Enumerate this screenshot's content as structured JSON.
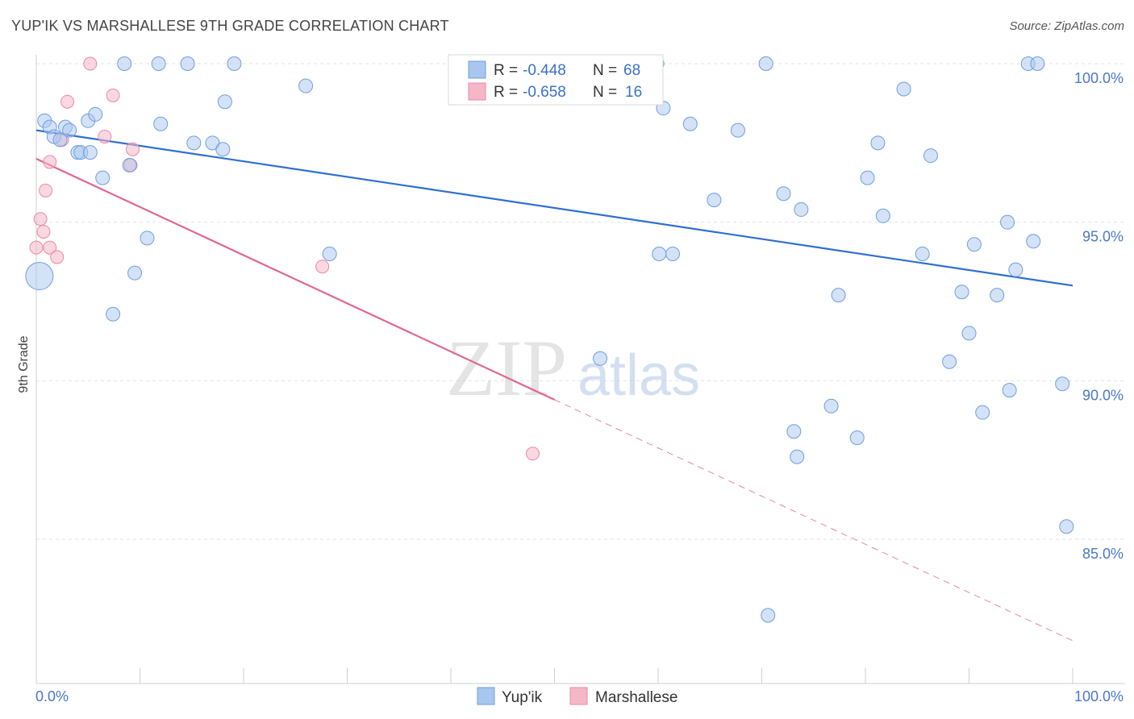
{
  "title": "YUP'IK VS MARSHALLESE 9TH GRADE CORRELATION CHART",
  "source": "Source: ZipAtlas.com",
  "watermark": {
    "zip": "ZIP",
    "atlas": "atlas"
  },
  "legend_box": {
    "rows": [
      {
        "r_label": "R = ",
        "r_value": "-0.448",
        "n_label": "N = ",
        "n_value": "68",
        "color": "#a9c6ef"
      },
      {
        "r_label": "R = ",
        "r_value": "-0.658",
        "n_label": "N = ",
        "n_value": "16",
        "color": "#f5b7c8"
      }
    ]
  },
  "colors": {
    "yupik_fill": "#a9c6ef",
    "yupik_stroke": "#6e9fdc",
    "yupik_line": "#2f6fcf",
    "marsh_fill": "#f5b7c8",
    "marsh_stroke": "#e88aa6",
    "marsh_line": "#e0678f",
    "grid": "#e3e3e3",
    "tick_label": "#4a78c8"
  },
  "chart_data": {
    "type": "scatter",
    "title": "YUP'IK VS MARSHALLESE 9TH GRADE CORRELATION CHART",
    "xlabel": "",
    "ylabel": "9th Grade",
    "xlim": [
      0,
      100
    ],
    "ylim": [
      80.5,
      100.5
    ],
    "x_tick_labels": [
      {
        "value": 0,
        "label": "0.0%"
      },
      {
        "value": 100,
        "label": "100.0%"
      }
    ],
    "y_tick_labels": [
      {
        "value": 100,
        "label": "100.0%"
      },
      {
        "value": 95,
        "label": "95.0%"
      },
      {
        "value": 90,
        "label": "90.0%"
      },
      {
        "value": 85,
        "label": "85.0%"
      }
    ],
    "grid": true,
    "legend": {
      "placement": "bottom",
      "items": [
        "Yup'ik",
        "Marshallese"
      ]
    },
    "series": [
      {
        "name": "Yup'ik",
        "points": [
          [
            0.3,
            93.3
          ],
          [
            0.8,
            98.2
          ],
          [
            1.3,
            98.0
          ],
          [
            1.7,
            97.7
          ],
          [
            2.3,
            97.6
          ],
          [
            2.8,
            98.0
          ],
          [
            3.2,
            97.9
          ],
          [
            4.0,
            97.2
          ],
          [
            4.3,
            97.2
          ],
          [
            5.2,
            97.2
          ],
          [
            5.0,
            98.2
          ],
          [
            5.7,
            98.4
          ],
          [
            6.4,
            96.4
          ],
          [
            7.4,
            92.1
          ],
          [
            8.5,
            100.0
          ],
          [
            9.0,
            96.8
          ],
          [
            9.5,
            93.4
          ],
          [
            10.7,
            94.5
          ],
          [
            11.8,
            100.0
          ],
          [
            12.0,
            98.1
          ],
          [
            14.6,
            100.0
          ],
          [
            15.2,
            97.5
          ],
          [
            17.0,
            97.5
          ],
          [
            18.0,
            97.3
          ],
          [
            18.2,
            98.8
          ],
          [
            19.1,
            100.0
          ],
          [
            26.0,
            99.3
          ],
          [
            28.3,
            94.0
          ],
          [
            41.3,
            100.0
          ],
          [
            49.8,
            100.0
          ],
          [
            54.4,
            90.7
          ],
          [
            58.1,
            99.6
          ],
          [
            59.9,
            100.0
          ],
          [
            60.1,
            94.0
          ],
          [
            60.5,
            98.6
          ],
          [
            61.4,
            94.0
          ],
          [
            63.1,
            98.1
          ],
          [
            65.4,
            95.7
          ],
          [
            67.7,
            97.9
          ],
          [
            70.4,
            100.0
          ],
          [
            70.6,
            82.6
          ],
          [
            72.1,
            95.9
          ],
          [
            73.1,
            88.4
          ],
          [
            73.4,
            87.6
          ],
          [
            73.8,
            95.4
          ],
          [
            76.7,
            89.2
          ],
          [
            77.4,
            92.7
          ],
          [
            79.2,
            88.2
          ],
          [
            80.2,
            96.4
          ],
          [
            81.2,
            97.5
          ],
          [
            81.7,
            95.2
          ],
          [
            83.7,
            99.2
          ],
          [
            85.5,
            94.0
          ],
          [
            86.3,
            97.1
          ],
          [
            88.1,
            90.6
          ],
          [
            89.3,
            92.8
          ],
          [
            90.0,
            91.5
          ],
          [
            90.5,
            94.3
          ],
          [
            91.3,
            89.0
          ],
          [
            92.7,
            92.7
          ],
          [
            93.7,
            95.0
          ],
          [
            93.9,
            89.7
          ],
          [
            94.5,
            93.5
          ],
          [
            95.7,
            100.0
          ],
          [
            96.2,
            94.4
          ],
          [
            96.6,
            100.0
          ],
          [
            99.0,
            89.9
          ],
          [
            99.4,
            85.4
          ]
        ],
        "trend": {
          "x": [
            0,
            100
          ],
          "y": [
            97.9,
            93.0
          ]
        }
      },
      {
        "name": "Marshallese",
        "points": [
          [
            0.0,
            94.2
          ],
          [
            0.4,
            95.1
          ],
          [
            0.7,
            94.7
          ],
          [
            0.9,
            96.0
          ],
          [
            1.3,
            96.9
          ],
          [
            1.3,
            94.2
          ],
          [
            2.0,
            93.9
          ],
          [
            2.5,
            97.6
          ],
          [
            3.0,
            98.8
          ],
          [
            5.2,
            100.0
          ],
          [
            6.6,
            97.7
          ],
          [
            7.4,
            99.0
          ],
          [
            9.1,
            96.8
          ],
          [
            9.3,
            97.3
          ],
          [
            27.6,
            93.6
          ],
          [
            47.9,
            87.7
          ]
        ],
        "trend": {
          "x": [
            0,
            50
          ],
          "y": [
            97.0,
            89.4
          ]
        },
        "trend_extension": {
          "x": [
            50,
            100
          ],
          "y": [
            89.4,
            81.8
          ]
        }
      }
    ]
  }
}
